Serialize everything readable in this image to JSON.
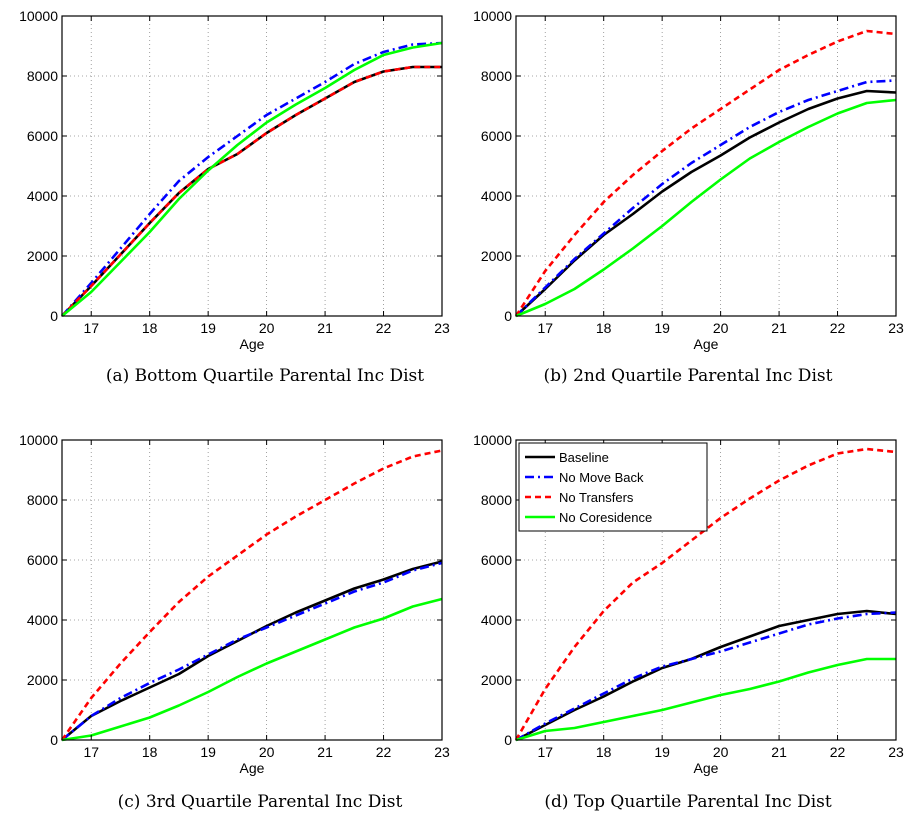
{
  "chart_data": [
    {
      "type": "line",
      "caption": "(a) Bottom Quartile Parental Inc Dist",
      "xlabel": "Age",
      "ylabel": "",
      "xlim": [
        16.5,
        23
      ],
      "ylim": [
        0,
        10000
      ],
      "xticks": [
        "17",
        "18",
        "19",
        "20",
        "21",
        "22",
        "23"
      ],
      "yticks": [
        "0",
        "2000",
        "4000",
        "6000",
        "8000",
        "10000"
      ],
      "grid": true,
      "x": [
        16.5,
        17,
        17.5,
        18,
        18.5,
        19,
        19.5,
        20,
        20.5,
        21,
        21.5,
        22,
        22.5,
        23
      ],
      "series": [
        {
          "name": "Baseline",
          "values": [
            0,
            1000,
            2050,
            3100,
            4100,
            4900,
            5400,
            6100,
            6700,
            7250,
            7800,
            8150,
            8300,
            8300
          ]
        },
        {
          "name": "No Move Back",
          "values": [
            0,
            1100,
            2250,
            3400,
            4500,
            5300,
            6000,
            6700,
            7250,
            7800,
            8400,
            8800,
            9050,
            9100
          ]
        },
        {
          "name": "No Transfers",
          "values": [
            0,
            1000,
            2050,
            3100,
            4100,
            4900,
            5400,
            6100,
            6700,
            7250,
            7800,
            8150,
            8300,
            8300
          ]
        },
        {
          "name": "No Coresidence",
          "values": [
            0,
            800,
            1800,
            2800,
            3900,
            4850,
            5700,
            6450,
            7050,
            7600,
            8200,
            8700,
            8950,
            9100
          ]
        }
      ]
    },
    {
      "type": "line",
      "caption": "(b) 2nd Quartile Parental Inc Dist",
      "xlabel": "Age",
      "ylabel": "",
      "xlim": [
        16.5,
        23
      ],
      "ylim": [
        0,
        10000
      ],
      "xticks": [
        "17",
        "18",
        "19",
        "20",
        "21",
        "22",
        "23"
      ],
      "yticks": [
        "0",
        "2000",
        "4000",
        "6000",
        "8000",
        "10000"
      ],
      "grid": true,
      "x": [
        16.5,
        17,
        17.5,
        18,
        18.5,
        19,
        19.5,
        20,
        20.5,
        21,
        21.5,
        22,
        22.5,
        23
      ],
      "series": [
        {
          "name": "Baseline",
          "values": [
            0,
            900,
            1850,
            2700,
            3400,
            4150,
            4800,
            5350,
            5950,
            6450,
            6900,
            7250,
            7500,
            7450
          ]
        },
        {
          "name": "No Move Back",
          "values": [
            0,
            950,
            1900,
            2750,
            3600,
            4400,
            5100,
            5700,
            6300,
            6800,
            7200,
            7500,
            7800,
            7850
          ]
        },
        {
          "name": "No Transfers",
          "values": [
            0,
            1500,
            2700,
            3800,
            4700,
            5500,
            6250,
            6900,
            7550,
            8200,
            8700,
            9150,
            9500,
            9400
          ]
        },
        {
          "name": "No Coresidence",
          "values": [
            0,
            400,
            900,
            1550,
            2250,
            3000,
            3800,
            4550,
            5250,
            5800,
            6300,
            6750,
            7100,
            7200
          ]
        }
      ]
    },
    {
      "type": "line",
      "caption": "(c) 3rd Quartile Parental Inc Dist",
      "xlabel": "Age",
      "ylabel": "",
      "xlim": [
        16.5,
        23
      ],
      "ylim": [
        0,
        10000
      ],
      "xticks": [
        "17",
        "18",
        "19",
        "20",
        "21",
        "22",
        "23"
      ],
      "yticks": [
        "0",
        "2000",
        "4000",
        "6000",
        "8000",
        "10000"
      ],
      "grid": true,
      "x": [
        16.5,
        17,
        17.5,
        18,
        18.5,
        19,
        19.5,
        20,
        20.5,
        21,
        21.5,
        22,
        22.5,
        23
      ],
      "series": [
        {
          "name": "Baseline",
          "values": [
            0,
            800,
            1300,
            1750,
            2200,
            2800,
            3300,
            3800,
            4250,
            4650,
            5050,
            5350,
            5700,
            5950
          ]
        },
        {
          "name": "No Move Back",
          "values": [
            0,
            800,
            1400,
            1900,
            2350,
            2850,
            3350,
            3750,
            4150,
            4550,
            4950,
            5250,
            5650,
            5900
          ]
        },
        {
          "name": "No Transfers",
          "values": [
            0,
            1400,
            2550,
            3600,
            4600,
            5450,
            6150,
            6850,
            7450,
            8000,
            8550,
            9050,
            9450,
            9650
          ]
        },
        {
          "name": "No Coresidence",
          "values": [
            0,
            150,
            450,
            750,
            1150,
            1600,
            2100,
            2550,
            2950,
            3350,
            3750,
            4050,
            4450,
            4700
          ]
        }
      ]
    },
    {
      "type": "line",
      "caption": "(d) Top Quartile Parental Inc Dist",
      "xlabel": "Age",
      "ylabel": "",
      "xlim": [
        16.5,
        23
      ],
      "ylim": [
        0,
        10000
      ],
      "xticks": [
        "17",
        "18",
        "19",
        "20",
        "21",
        "22",
        "23"
      ],
      "yticks": [
        "0",
        "2000",
        "4000",
        "6000",
        "8000",
        "10000"
      ],
      "grid": true,
      "legend": "top-left",
      "x": [
        16.5,
        17,
        17.5,
        18,
        18.5,
        19,
        19.5,
        20,
        20.5,
        21,
        21.5,
        22,
        22.5,
        23
      ],
      "series": [
        {
          "name": "Baseline",
          "values": [
            0,
            500,
            1000,
            1450,
            1950,
            2400,
            2700,
            3100,
            3450,
            3800,
            4000,
            4200,
            4300,
            4200
          ]
        },
        {
          "name": "No Move Back",
          "values": [
            0,
            550,
            1050,
            1550,
            2050,
            2450,
            2700,
            2950,
            3250,
            3550,
            3850,
            4050,
            4200,
            4250
          ]
        },
        {
          "name": "No Transfers",
          "values": [
            0,
            1700,
            3100,
            4300,
            5250,
            5900,
            6650,
            7400,
            8050,
            8650,
            9150,
            9550,
            9700,
            9600
          ]
        },
        {
          "name": "No Coresidence",
          "values": [
            0,
            300,
            400,
            600,
            800,
            1000,
            1250,
            1500,
            1700,
            1950,
            2250,
            2500,
            2700,
            2700
          ]
        }
      ]
    }
  ],
  "styles": {
    "Baseline": {
      "color": "#000000",
      "dash": ""
    },
    "No Move Back": {
      "color": "#0000ff",
      "dash": "9,4,2,4"
    },
    "No Transfers": {
      "color": "#ff0000",
      "dash": "6,4"
    },
    "No Coresidence": {
      "color": "#00ff00",
      "dash": ""
    }
  }
}
